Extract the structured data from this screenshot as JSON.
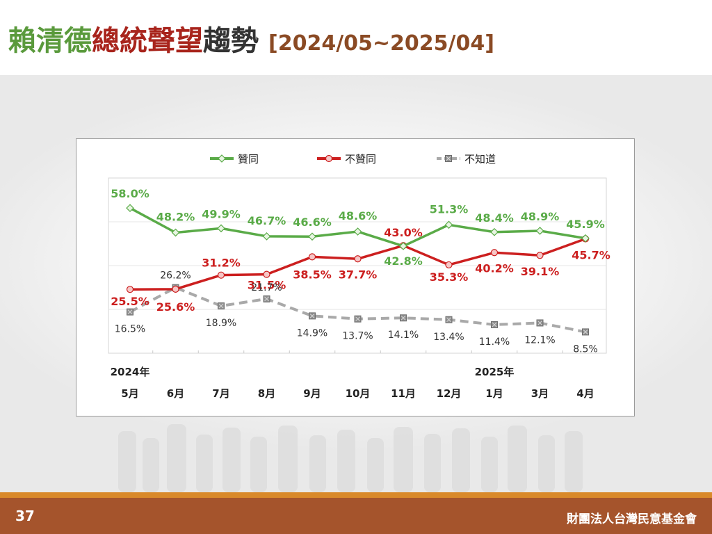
{
  "title": {
    "parts": [
      {
        "text": "賴清德",
        "color": "#5a9a3c"
      },
      {
        "text": "總統聲望",
        "color": "#a8241c"
      },
      {
        "text": "趨勢",
        "color": "#333333"
      }
    ],
    "range": "[2024/05~2025/04]",
    "range_color": "#8a4a24"
  },
  "footer": {
    "page_number": "37",
    "organization": "財團法人台灣民意基金會"
  },
  "chart_data": {
    "type": "line",
    "categories": [
      "5月",
      "6月",
      "7月",
      "8月",
      "9月",
      "10月",
      "11月",
      "12月",
      "1月",
      "3月",
      "4月"
    ],
    "year_labels": [
      {
        "index": 0,
        "text": "2024年"
      },
      {
        "index": 8,
        "text": "2025年"
      }
    ],
    "ylim": [
      0,
      70
    ],
    "grid": true,
    "legend_position": "top",
    "series": [
      {
        "name": "贊同",
        "color": "#5aab48",
        "style": "solid",
        "marker": "diamond",
        "values": [
          58.0,
          48.2,
          49.9,
          46.7,
          46.6,
          48.6,
          42.8,
          51.3,
          48.4,
          48.9,
          45.9
        ],
        "labels": [
          "58.0%",
          "48.2%",
          "49.9%",
          "46.7%",
          "46.6%",
          "48.6%",
          "42.8%",
          "51.3%",
          "48.4%",
          "48.9%",
          "45.9%"
        ]
      },
      {
        "name": "不贊同",
        "color": "#cc1f1f",
        "style": "solid",
        "marker": "circle",
        "values": [
          25.5,
          25.6,
          31.2,
          31.5,
          38.5,
          37.7,
          43.0,
          35.3,
          40.2,
          39.1,
          45.7
        ],
        "labels": [
          "25.5%",
          "25.6%",
          "31.2%",
          "31.5%",
          "38.5%",
          "37.7%",
          "43.0%",
          "35.3%",
          "40.2%",
          "39.1%",
          "45.7%"
        ]
      },
      {
        "name": "不知道",
        "color": "#a9a9a9",
        "style": "dashed",
        "marker": "square-x",
        "values": [
          16.5,
          26.2,
          18.9,
          21.7,
          14.9,
          13.7,
          14.1,
          13.4,
          11.4,
          12.1,
          8.5
        ],
        "labels": [
          "16.5%",
          "26.2%",
          "18.9%",
          "21.7%",
          "14.9%",
          "13.7%",
          "14.1%",
          "13.4%",
          "11.4%",
          "12.1%",
          "8.5%"
        ]
      }
    ]
  }
}
